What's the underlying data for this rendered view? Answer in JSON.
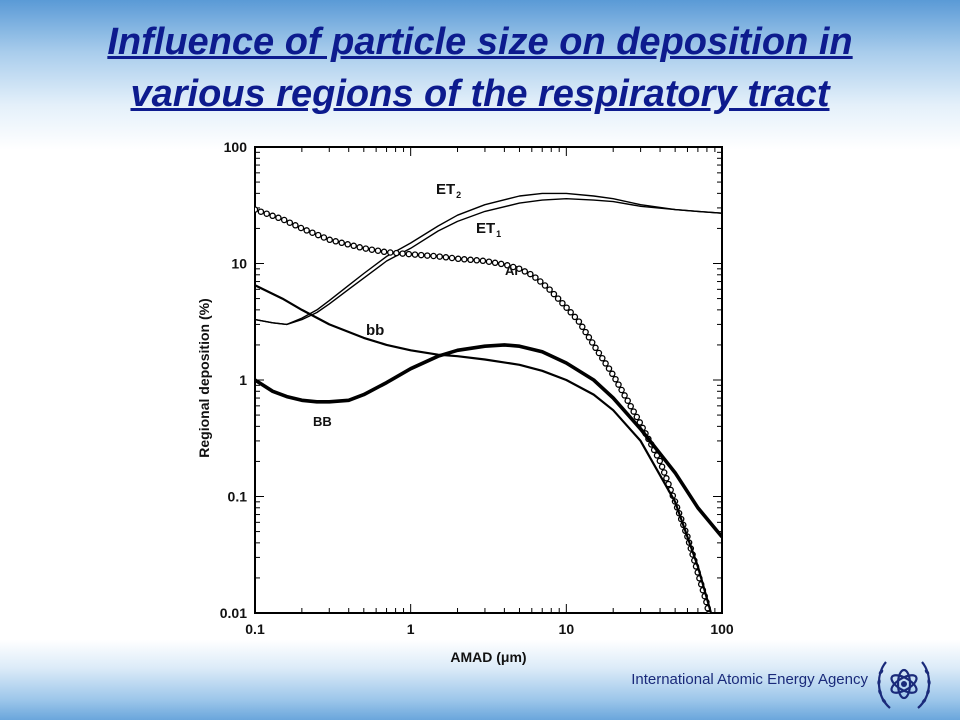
{
  "title_lines": [
    "Influence of particle size on deposition in",
    "various regions of the respiratory tract"
  ],
  "footer": {
    "organization": "International Atomic Energy Agency"
  },
  "logo": {
    "icon": "atom-laurel-logo-icon"
  },
  "chart_data": {
    "type": "line",
    "xlabel": "AMAD (μm)",
    "ylabel": "Regional deposition (%)",
    "x_scale": "log",
    "y_scale": "log",
    "xlim": [
      0.1,
      100
    ],
    "ylim": [
      0.01,
      100
    ],
    "xticks": [
      "0.1",
      "1",
      "10",
      "100"
    ],
    "yticks": [
      "100",
      "10",
      "1",
      "0.1",
      "0.01"
    ],
    "grid": false,
    "series": [
      {
        "name": "ET",
        "subscript": "2",
        "marker": "none",
        "width": "thin",
        "x": [
          0.1,
          0.13,
          0.16,
          0.2,
          0.25,
          0.3,
          0.4,
          0.5,
          0.7,
          1,
          1.5,
          2,
          3,
          5,
          7,
          10,
          15,
          20,
          30,
          50,
          70,
          100
        ],
        "y": [
          3.3,
          3.1,
          3.0,
          3.4,
          4.0,
          4.8,
          6.5,
          8.2,
          11.5,
          15,
          21,
          26,
          32,
          38,
          40,
          40,
          38,
          36,
          32,
          29,
          28,
          27
        ]
      },
      {
        "name": "ET",
        "subscript": "1",
        "marker": "none",
        "width": "thin",
        "x": [
          0.1,
          0.13,
          0.16,
          0.2,
          0.25,
          0.3,
          0.4,
          0.5,
          0.7,
          1,
          1.5,
          2,
          3,
          5,
          7,
          10,
          15,
          20,
          30,
          50,
          70,
          100
        ],
        "y": [
          3.3,
          3.1,
          3.0,
          3.3,
          3.8,
          4.5,
          6.0,
          7.5,
          10.5,
          13.5,
          19,
          23,
          28,
          33,
          35,
          36,
          35,
          34,
          31,
          29,
          28,
          27
        ]
      },
      {
        "name": "AI",
        "marker": "circle",
        "width": "medium",
        "x": [
          0.1,
          0.15,
          0.2,
          0.3,
          0.5,
          0.7,
          1,
          1.5,
          2,
          3,
          4,
          5,
          6,
          7,
          8,
          10,
          12,
          15,
          20,
          25,
          30,
          40,
          50,
          60,
          70,
          80,
          90
        ],
        "y": [
          29,
          24,
          20,
          16,
          13.5,
          12.5,
          12,
          11.5,
          11,
          10.5,
          9.8,
          9,
          8,
          6.8,
          5.8,
          4.2,
          3.2,
          2.0,
          1.1,
          0.65,
          0.42,
          0.2,
          0.09,
          0.045,
          0.022,
          0.012,
          0.005
        ]
      },
      {
        "name": "bb",
        "marker": "none",
        "width": "medium",
        "x": [
          0.1,
          0.15,
          0.2,
          0.3,
          0.5,
          0.7,
          1,
          1.5,
          2,
          3,
          5,
          7,
          10,
          15,
          20,
          30,
          50,
          70,
          85
        ],
        "y": [
          6.5,
          5.0,
          4.0,
          3.0,
          2.3,
          2.0,
          1.8,
          1.65,
          1.6,
          1.5,
          1.35,
          1.2,
          1.0,
          0.75,
          0.55,
          0.3,
          0.09,
          0.025,
          0.01
        ]
      },
      {
        "name": "BB",
        "marker": "none",
        "width": "thick",
        "x": [
          0.1,
          0.13,
          0.16,
          0.2,
          0.25,
          0.3,
          0.4,
          0.5,
          0.7,
          1,
          1.5,
          2,
          3,
          4,
          5,
          7,
          10,
          15,
          20,
          30,
          50,
          70,
          100
        ],
        "y": [
          1.0,
          0.8,
          0.72,
          0.67,
          0.65,
          0.65,
          0.67,
          0.75,
          0.95,
          1.25,
          1.6,
          1.8,
          1.95,
          2.0,
          1.95,
          1.75,
          1.4,
          1.0,
          0.7,
          0.38,
          0.16,
          0.08,
          0.045
        ]
      }
    ]
  }
}
